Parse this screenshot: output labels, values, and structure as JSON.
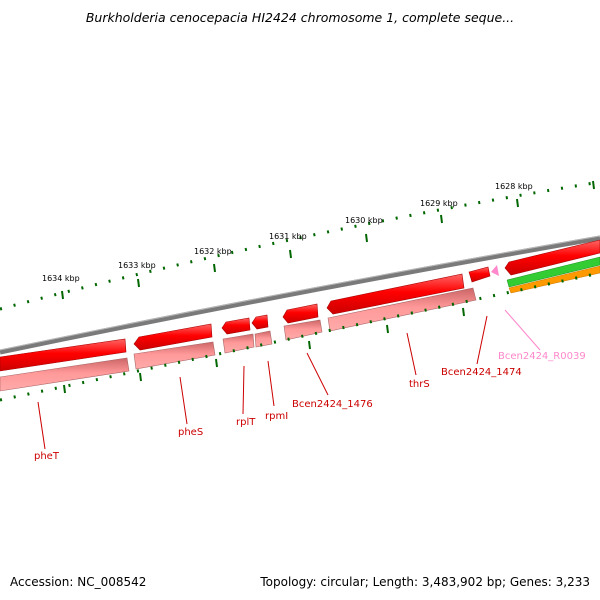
{
  "title": "Burkholderia cenocepacia HI2424 chromosome 1, complete seque...",
  "footer": {
    "accession": "Accession: NC_008542",
    "summary": "Topology: circular; Length: 3,483,902 bp; Genes: 3,233"
  },
  "colors": {
    "backbone": "#7a7a7a",
    "cds_forward": "#ff0000",
    "cds_reverse": "#ff9999",
    "rna": "#ff88cc",
    "track_green": "#33cc33",
    "track_orange": "#ff9900",
    "tick": "#006600",
    "gene_label": "#cc0000",
    "rna_label": "#ff88cc"
  },
  "scale": {
    "tick_labels": [
      "1634 kbp",
      "1633 kbp",
      "1632 kbp",
      "1631 kbp",
      "1630 kbp",
      "1629 kbp",
      "1628 kbp"
    ]
  },
  "genes": [
    {
      "label": "pheT"
    },
    {
      "label": "pheS"
    },
    {
      "label": "rplT"
    },
    {
      "label": "rpmI"
    },
    {
      "label": "Bcen2424_1476"
    },
    {
      "label": "thrS"
    },
    {
      "label": "Bcen2424_1474"
    }
  ],
  "rna": [
    {
      "label": "Bcen2424_R0039"
    }
  ]
}
